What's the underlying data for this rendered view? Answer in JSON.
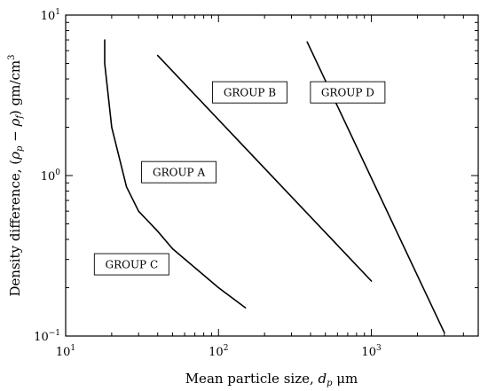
{
  "chart_data": {
    "type": "line",
    "xscale": "log",
    "yscale": "log",
    "xlim": [
      10,
      5000
    ],
    "ylim": [
      0.1,
      10
    ],
    "xlabel_text": "Mean particle size, ",
    "xlabel_var": "d",
    "xlabel_sub": "p",
    "xlabel_unit": " μm",
    "ylabel_text": "Density difference, (",
    "ylabel_rho1": "ρ",
    "ylabel_sub1": "p",
    "ylabel_minus": " − ",
    "ylabel_rho2": "ρ",
    "ylabel_sub2": "f",
    "ylabel_unit": ") gm/cm",
    "ylabel_sup": "3",
    "x_ticks": [
      {
        "value": 10,
        "base": "10",
        "exp": "1"
      },
      {
        "value": 100,
        "base": "10",
        "exp": "2"
      },
      {
        "value": 1000,
        "base": "10",
        "exp": "3"
      }
    ],
    "y_ticks": [
      {
        "value": 0.1,
        "base": "10",
        "exp": "−1"
      },
      {
        "value": 1,
        "base": "10",
        "exp": "0"
      },
      {
        "value": 10,
        "base": "10",
        "exp": "1"
      }
    ],
    "series": [
      {
        "x": [
          18,
          18,
          20,
          25,
          30,
          40,
          50,
          100,
          150
        ],
        "y": [
          7,
          5,
          2,
          0.85,
          0.6,
          0.45,
          0.35,
          0.2,
          0.15
        ]
      },
      {
        "x": [
          40,
          1000
        ],
        "y": [
          5.6,
          0.22
        ]
      },
      {
        "x": [
          380,
          3000
        ],
        "y": [
          6.8,
          0.105
        ]
      }
    ],
    "annotations": [
      {
        "text": "GROUP A",
        "x": 55,
        "y": 1.05
      },
      {
        "text": "GROUP B",
        "x": 160,
        "y": 3.3
      },
      {
        "text": "GROUP C",
        "x": 27,
        "y": 0.28
      },
      {
        "text": "GROUP D",
        "x": 700,
        "y": 3.3
      }
    ]
  }
}
